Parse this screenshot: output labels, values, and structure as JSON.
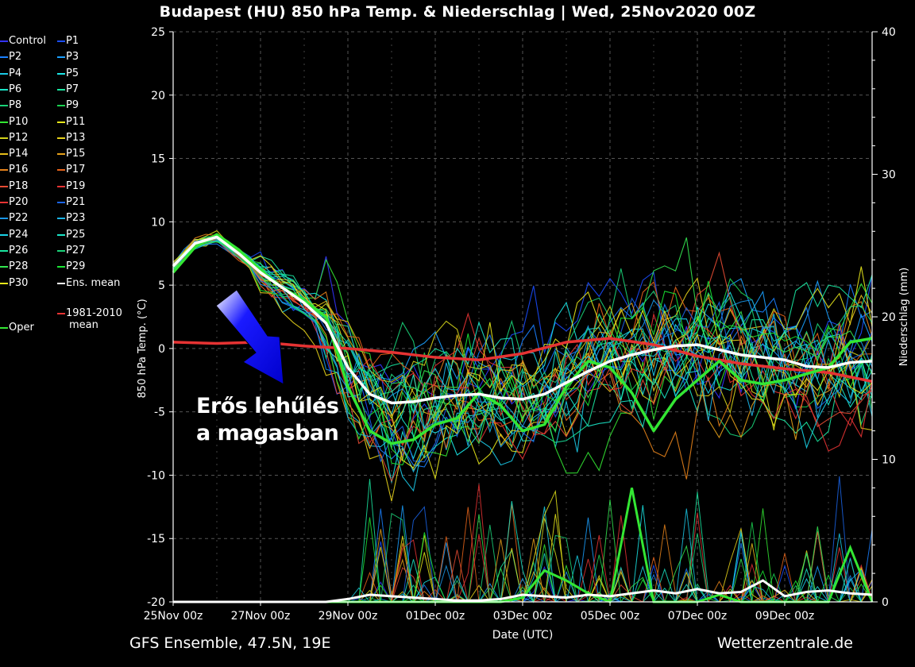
{
  "header": {
    "title": "Budapest  (HU)  850 hPa Temp. & Niederschlag | Wed, 25Nov2020 00Z"
  },
  "footer": {
    "model": "GFS Ensemble, 47.5N, 19E",
    "source": "Wetterzentrale.de"
  },
  "annotation": {
    "line1": "Erős lehűlés",
    "line2": "a magasban",
    "arrow_color": "#1a1aff"
  },
  "legend": [
    {
      "label": "Control",
      "color": "#3333ff"
    },
    {
      "label": "P1",
      "color": "#1a4dff"
    },
    {
      "label": "P2",
      "color": "#1a80ff"
    },
    {
      "label": "P3",
      "color": "#1aa0ff"
    },
    {
      "label": "P4",
      "color": "#1ac8e6"
    },
    {
      "label": "P5",
      "color": "#1ae6e6"
    },
    {
      "label": "P6",
      "color": "#1ae6c8"
    },
    {
      "label": "P7",
      "color": "#1ae6a0"
    },
    {
      "label": "P8",
      "color": "#1ad278"
    },
    {
      "label": "P9",
      "color": "#1ad250"
    },
    {
      "label": "P10",
      "color": "#33e633"
    },
    {
      "label": "P11",
      "color": "#e6e61a"
    },
    {
      "label": "P12",
      "color": "#d2d21a"
    },
    {
      "label": "P13",
      "color": "#e6d21a"
    },
    {
      "label": "P14",
      "color": "#e6be1a"
    },
    {
      "label": "P15",
      "color": "#e6a01a"
    },
    {
      "label": "P16",
      "color": "#e6821a"
    },
    {
      "label": "P17",
      "color": "#e6641a"
    },
    {
      "label": "P18",
      "color": "#e64b33"
    },
    {
      "label": "P19",
      "color": "#e63333"
    },
    {
      "label": "P20",
      "color": "#e63333"
    },
    {
      "label": "P21",
      "color": "#1a64e6"
    },
    {
      "label": "P22",
      "color": "#1a96e6"
    },
    {
      "label": "P23",
      "color": "#1ab4e6"
    },
    {
      "label": "P24",
      "color": "#1ad2e6"
    },
    {
      "label": "P25",
      "color": "#1ae6c8"
    },
    {
      "label": "P26",
      "color": "#1ae6a0"
    },
    {
      "label": "P27",
      "color": "#1ad278"
    },
    {
      "label": "P28",
      "color": "#33e650"
    },
    {
      "label": "P29",
      "color": "#1ae633"
    },
    {
      "label": "P30",
      "color": "#e6e61a"
    },
    {
      "label": "Ens. mean",
      "color": "#ffffff"
    },
    {
      "label": "1981-2010 mean",
      "color": "#e63333"
    },
    {
      "label": "Oper",
      "color": "#33e633"
    }
  ],
  "chart_data": {
    "type": "line",
    "xlabel": "Date (UTC)",
    "ylabel": "850 hPa Temp. (°C)",
    "y2label": "Niederschlag (mm)",
    "ylim": [
      -20,
      25
    ],
    "y2lim": [
      0,
      40
    ],
    "yticks": [
      25,
      20,
      15,
      10,
      5,
      0,
      -5,
      -10,
      -15,
      -20
    ],
    "y2ticks": [
      40,
      30,
      20,
      10,
      0
    ],
    "xlim_days": [
      0,
      16
    ],
    "xticks": [
      {
        "label": "25Nov 00z",
        "day": 0
      },
      {
        "label": "27Nov 00z",
        "day": 2
      },
      {
        "label": "29Nov 00z",
        "day": 4
      },
      {
        "label": "01Dec 00z",
        "day": 6
      },
      {
        "label": "03Dec 00z",
        "day": 8
      },
      {
        "label": "05Dec 00z",
        "day": 10
      },
      {
        "label": "07Dec 00z",
        "day": 12
      },
      {
        "label": "09Dec 00z",
        "day": 14
      }
    ],
    "grid": true,
    "ens_mean": {
      "name": "Ens. mean",
      "color": "#ffffff",
      "days": [
        0,
        0.5,
        1,
        1.5,
        2,
        2.5,
        3,
        3.5,
        4,
        4.5,
        5,
        5.5,
        6,
        6.5,
        7,
        7.5,
        8,
        8.5,
        9,
        9.5,
        10,
        10.5,
        11,
        11.5,
        12,
        12.5,
        13,
        13.5,
        14,
        14.5,
        15,
        15.5,
        16
      ],
      "values": [
        6.5,
        8.3,
        8.8,
        7.5,
        6.0,
        4.8,
        3.6,
        2.0,
        -1.5,
        -3.6,
        -4.3,
        -4.2,
        -3.9,
        -3.7,
        -3.6,
        -3.9,
        -4.0,
        -3.6,
        -2.7,
        -1.8,
        -1.0,
        -0.5,
        -0.1,
        0.2,
        0.3,
        -0.1,
        -0.5,
        -0.7,
        -0.9,
        -1.4,
        -1.5,
        -1.1,
        -1.0
      ]
    },
    "climate_mean": {
      "name": "1981-2010 mean",
      "color": "#e63333",
      "days": [
        0,
        1,
        2,
        3,
        4,
        5,
        6,
        7,
        8,
        9,
        10,
        11,
        12,
        13,
        14,
        15,
        16
      ],
      "values": [
        0.5,
        0.4,
        0.5,
        0.2,
        0.0,
        -0.3,
        -0.7,
        -0.9,
        -0.4,
        0.5,
        0.8,
        0.3,
        -0.6,
        -1.2,
        -1.6,
        -1.9,
        -2.6
      ]
    },
    "oper": {
      "name": "Oper",
      "color": "#33e633",
      "days": [
        0,
        0.5,
        1,
        1.5,
        2,
        2.5,
        3,
        3.5,
        4,
        4.5,
        5,
        5.5,
        6,
        6.5,
        7,
        7.5,
        8,
        8.5,
        9,
        9.5,
        10,
        10.5,
        11,
        11.5,
        12,
        12.5,
        13,
        13.5,
        14,
        14.5,
        15,
        15.5,
        16
      ],
      "values": [
        6.0,
        8.0,
        9.0,
        7.8,
        6.2,
        4.8,
        3.8,
        2.5,
        -3.0,
        -6.5,
        -7.5,
        -7.2,
        -6.0,
        -5.5,
        -3.5,
        -4.5,
        -6.5,
        -6.0,
        -3.0,
        -1.0,
        -1.5,
        -3.5,
        -6.5,
        -4.0,
        -2.5,
        -1.0,
        -2.5,
        -2.8,
        -2.5,
        -2.0,
        -1.5,
        0.5,
        0.8
      ]
    },
    "precip_ens_mean_mm": [
      0,
      0,
      0,
      0,
      0,
      0,
      0,
      0,
      0.2,
      0.5,
      0.4,
      0.3,
      0.2,
      0.1,
      0.1,
      0.2,
      0.5,
      0.4,
      0.3,
      0.5,
      0.4,
      0.6,
      0.8,
      0.6,
      0.9,
      0.6,
      0.7,
      1.5,
      0.4,
      0.7,
      0.8,
      0.6,
      0.5
    ],
    "precip_oper_mm": [
      0,
      0,
      0,
      0,
      0,
      0,
      0,
      0,
      0,
      0,
      0,
      0,
      0,
      0,
      0,
      0,
      0.3,
      2.2,
      1.5,
      0.6,
      0,
      8.0,
      0,
      0,
      0,
      0.5,
      0,
      0,
      0,
      0,
      0,
      3.8,
      0
    ]
  }
}
